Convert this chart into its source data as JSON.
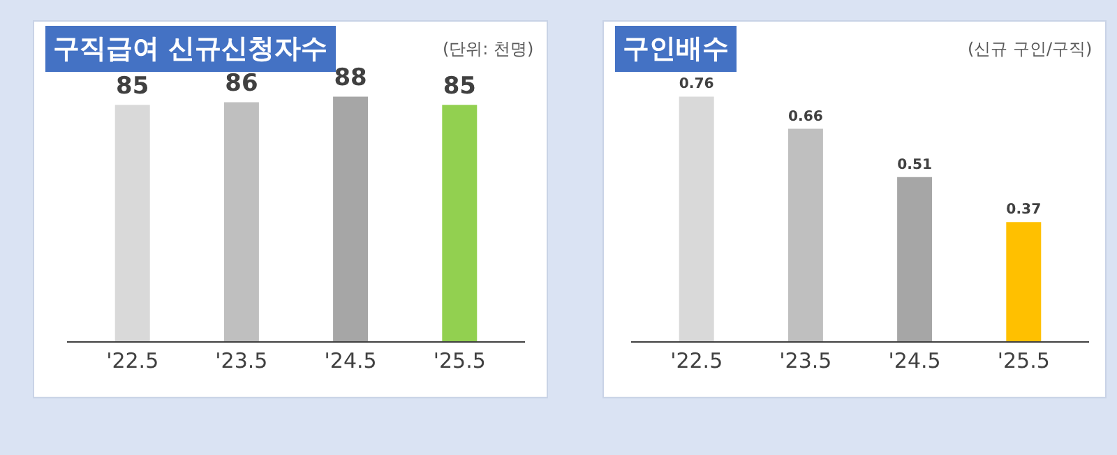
{
  "chart_data": [
    {
      "type": "bar",
      "title": "구직급여 신규신청자수",
      "annotations": [
        "(단위: 천명)"
      ],
      "categories": [
        "'22.5",
        "'23.5",
        "'24.5",
        "'25.5"
      ],
      "values": [
        85,
        86,
        88,
        85
      ],
      "colors": [
        "#d9d9d9",
        "#bfbfbf",
        "#a6a6a6",
        "#92d050"
      ],
      "data_labels": true,
      "tick_labels": "x",
      "legend": false
    },
    {
      "type": "bar",
      "title": "구인배수",
      "annotations": [
        "(신규 구인/구직)"
      ],
      "categories": [
        "'22.5",
        "'23.5",
        "'24.5",
        "'25.5"
      ],
      "values": [
        0.76,
        0.66,
        0.51,
        0.37
      ],
      "colors": [
        "#d9d9d9",
        "#bfbfbf",
        "#a6a6a6",
        "#ffc000"
      ],
      "data_labels": true,
      "tick_labels": "x",
      "legend": false
    }
  ]
}
